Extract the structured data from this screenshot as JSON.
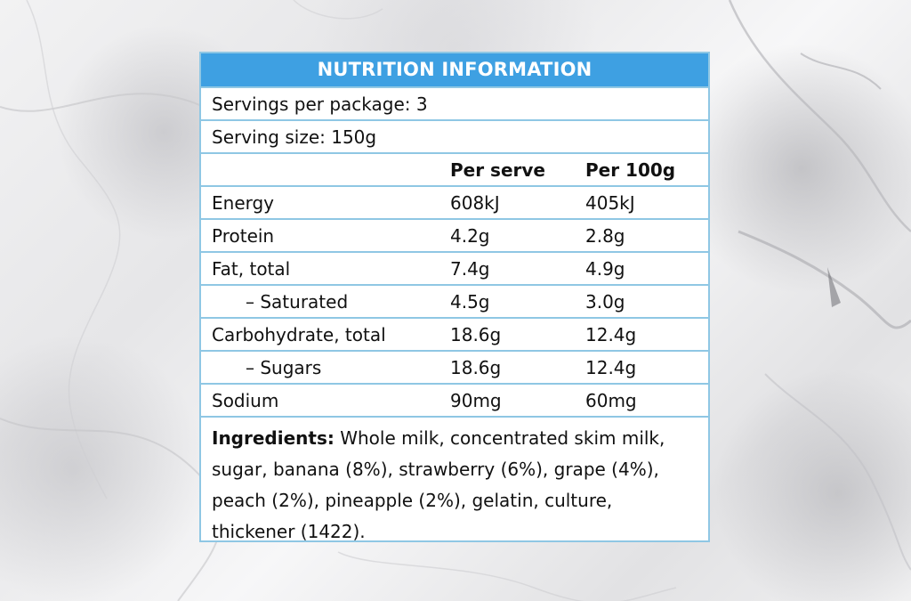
{
  "header": {
    "title": "NUTRITION INFORMATION"
  },
  "servings": {
    "per_package": "Servings per package: 3",
    "serving_size": "Serving size: 150g"
  },
  "columns": {
    "per_serve": "Per serve",
    "per_100g": "Per 100g"
  },
  "rows": [
    {
      "label": "Energy",
      "per_serve": "608kJ",
      "per_100g": "405kJ"
    },
    {
      "label": "Protein",
      "per_serve": "4.2g",
      "per_100g": "2.8g"
    },
    {
      "label": "Fat, total",
      "per_serve": "7.4g",
      "per_100g": "4.9g"
    },
    {
      "label": "– Saturated",
      "per_serve": "4.5g",
      "per_100g": "3.0g"
    },
    {
      "label": "Carbohydrate, total",
      "per_serve": "18.6g",
      "per_100g": "12.4g"
    },
    {
      "label": "– Sugars",
      "per_serve": "18.6g",
      "per_100g": "12.4g"
    },
    {
      "label": "Sodium",
      "per_serve": "90mg",
      "per_100g": "60mg"
    }
  ],
  "ingredients": {
    "label": "Ingredients:",
    "text": " Whole milk, concentrated skim milk, sugar, banana (8%), strawberry (6%), grape (4%), peach (2%), pineapple (2%), gelatin, culture, thickener (1422)."
  },
  "colors": {
    "header_bg": "#3ea0e2",
    "border": "#8fc7e4",
    "background": "marble-white"
  }
}
